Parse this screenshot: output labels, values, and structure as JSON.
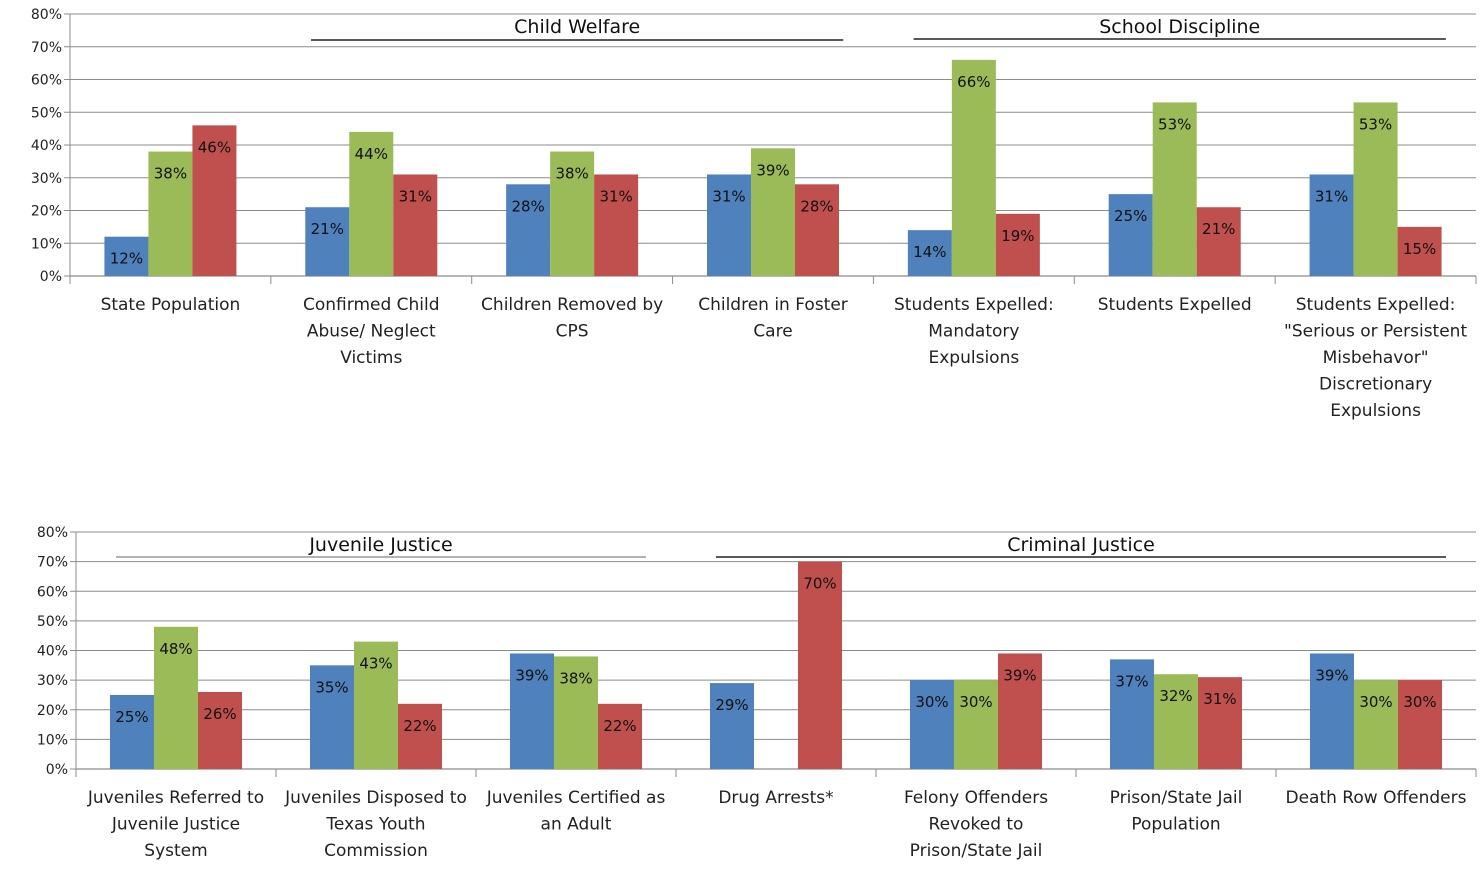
{
  "colors": {
    "series_1": "#4f81bd",
    "series_2": "#9bbb59",
    "series_3": "#c0504d",
    "grid": "#8c8c8c",
    "group_line_child_welfare": "#222222",
    "group_line_school": "#222222",
    "group_line_juvenile": "#999999",
    "group_line_criminal": "#222222"
  },
  "chart_data": [
    {
      "type": "bar",
      "ylim": [
        0,
        80
      ],
      "yticks": [
        "0%",
        "10%",
        "20%",
        "30%",
        "40%",
        "50%",
        "60%",
        "70%",
        "80%"
      ],
      "grid": true,
      "groups": [
        {
          "label": "Child Welfare",
          "from": 1,
          "to": 3
        },
        {
          "label": "School Discipline",
          "from": 4,
          "to": 6
        }
      ],
      "categories": [
        "State Population",
        "Confirmed Child Abuse/ Neglect Victims",
        "Children Removed by CPS",
        "Children in Foster Care",
        "Students Expelled: Mandatory Expulsions",
        "Students Expelled",
        "Students Expelled: \"Serious or Persistent Misbehavor\" Discretionary Expulsions"
      ],
      "category_lines": [
        [
          "State Population"
        ],
        [
          "Confirmed Child",
          "Abuse/ Neglect",
          "Victims"
        ],
        [
          "Children Removed by",
          "CPS"
        ],
        [
          "Children in Foster",
          "Care"
        ],
        [
          "Students Expelled:",
          "Mandatory",
          "Expulsions"
        ],
        [
          "Students Expelled"
        ],
        [
          "Students Expelled:",
          "\"Serious or Persistent",
          "Misbehavor\"",
          "Discretionary",
          "Expulsions"
        ]
      ],
      "series": [
        {
          "values": [
            12,
            21,
            28,
            31,
            14,
            25,
            31
          ],
          "labels": [
            "12%",
            "21%",
            "28%",
            "31%",
            "14%",
            "25%",
            "31%"
          ]
        },
        {
          "values": [
            38,
            44,
            38,
            39,
            66,
            53,
            53
          ],
          "labels": [
            "38%",
            "44%",
            "38%",
            "39%",
            "66%",
            "53%",
            "53%"
          ]
        },
        {
          "values": [
            46,
            31,
            31,
            28,
            19,
            21,
            15
          ],
          "labels": [
            "46%",
            "31%",
            "31%",
            "28%",
            "19%",
            "21%",
            "15%"
          ]
        }
      ]
    },
    {
      "type": "bar",
      "ylim": [
        0,
        80
      ],
      "yticks": [
        "0%",
        "10%",
        "20%",
        "30%",
        "40%",
        "50%",
        "60%",
        "70%",
        "80%"
      ],
      "grid": true,
      "groups": [
        {
          "label": "Juvenile Justice",
          "from": 0,
          "to": 2
        },
        {
          "label": "Criminal Justice",
          "from": 3,
          "to": 6
        }
      ],
      "categories": [
        "Juveniles Referred to Juvenile Justice System",
        "Juveniles Disposed to Texas Youth Commission",
        "Juveniles Certified as an Adult",
        "Drug Arrests*",
        "Felony Offenders Revoked to Prison/State Jail",
        "Prison/State Jail Population",
        "Death Row Offenders"
      ],
      "category_lines": [
        [
          "Juveniles Referred to",
          "Juvenile Justice",
          "System"
        ],
        [
          "Juveniles Disposed to",
          "Texas Youth",
          "Commission"
        ],
        [
          "Juveniles Certified as",
          "an Adult"
        ],
        [
          "Drug Arrests*"
        ],
        [
          "Felony Offenders",
          "Revoked to",
          "Prison/State Jail"
        ],
        [
          "Prison/State Jail",
          "Population"
        ],
        [
          "Death Row Offenders"
        ]
      ],
      "series": [
        {
          "values": [
            25,
            35,
            39,
            29,
            30,
            37,
            39
          ],
          "labels": [
            "25%",
            "35%",
            "39%",
            "29%",
            "30%",
            "37%",
            "39%"
          ]
        },
        {
          "values": [
            48,
            43,
            38,
            null,
            30,
            32,
            30
          ],
          "labels": [
            "48%",
            "43%",
            "38%",
            "",
            "30%",
            "32%",
            "30%"
          ]
        },
        {
          "values": [
            26,
            22,
            22,
            70,
            39,
            31,
            30
          ],
          "labels": [
            "26%",
            "22%",
            "22%",
            "70%",
            "39%",
            "31%",
            "30%"
          ]
        }
      ]
    }
  ]
}
